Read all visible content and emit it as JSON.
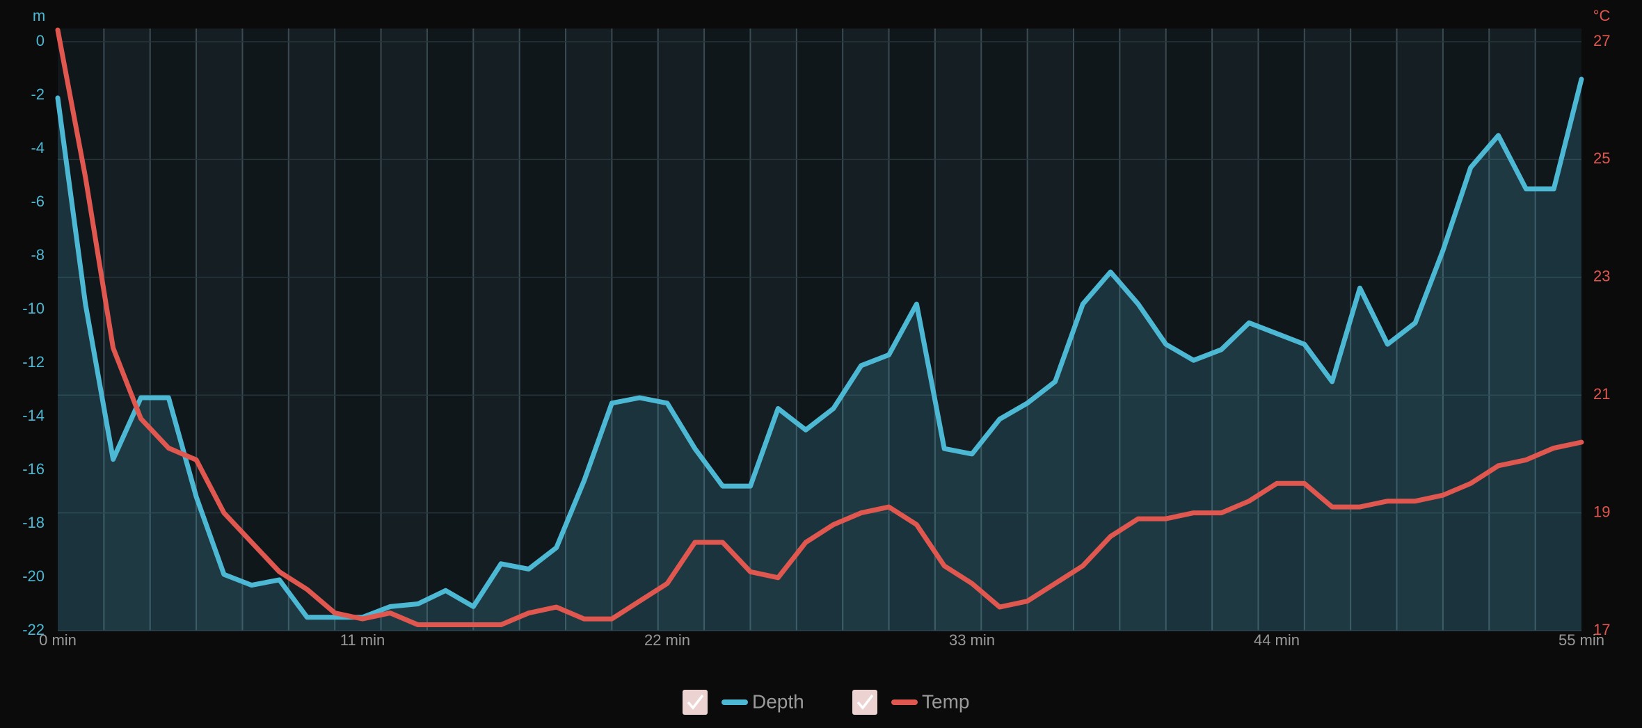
{
  "chart_data": {
    "type": "line",
    "y_label": "m",
    "y2_label": "°C",
    "x": [
      0,
      1,
      2,
      3,
      4,
      5,
      6,
      7,
      8,
      9,
      10,
      11,
      12,
      13,
      14,
      15,
      16,
      17,
      18,
      19,
      20,
      21,
      22,
      23,
      24,
      25,
      26,
      27,
      28,
      29,
      30,
      31,
      32,
      33,
      34,
      35,
      36,
      37,
      38,
      39,
      40,
      41,
      42,
      43,
      44,
      45,
      46,
      47,
      48,
      49,
      50,
      51,
      52,
      53,
      54,
      55
    ],
    "series": [
      {
        "name": "Depth",
        "color": "#4db8d4",
        "values": [
          -2.1,
          -9.8,
          -15.6,
          -13.3,
          -13.3,
          -17,
          -19.9,
          -20.3,
          -20.1,
          -21.5,
          -21.5,
          -21.5,
          -21.1,
          -21,
          -20.5,
          -21.1,
          -19.5,
          -19.7,
          -18.9,
          -16.4,
          -13.5,
          -13.3,
          -13.5,
          -15.2,
          -16.6,
          -16.6,
          -13.7,
          -14.5,
          -13.7,
          -12.1,
          -11.7,
          -9.8,
          -15.2,
          -15.4,
          -14.1,
          -13.5,
          -12.7,
          -9.8,
          -8.6,
          -9.8,
          -11.3,
          -11.9,
          -11.5,
          -10.5,
          -10.9,
          -11.3,
          -12.7,
          -9.2,
          -11.3,
          -10.5,
          -7.8,
          -4.7,
          -3.5,
          -5.5,
          -5.5,
          -1.4
        ]
      },
      {
        "name": "Temp",
        "color": "#e0574f",
        "axis": "y2",
        "values": [
          27.2,
          24.7,
          21.8,
          20.6,
          20.1,
          19.9,
          19,
          18.5,
          18,
          17.7,
          17.3,
          17.2,
          17.3,
          17.1,
          17.1,
          17.1,
          17.1,
          17.3,
          17.4,
          17.2,
          17.2,
          17.5,
          17.8,
          18.5,
          18.5,
          18,
          17.9,
          18.5,
          18.8,
          19,
          19.1,
          18.8,
          18.1,
          17.8,
          17.4,
          17.5,
          17.8,
          18.1,
          18.6,
          18.9,
          18.9,
          19,
          19,
          19.2,
          19.5,
          19.5,
          19.1,
          19.1,
          19.2,
          19.2,
          19.3,
          19.5,
          19.8,
          19.9,
          20.1,
          20.2
        ]
      }
    ],
    "xlim": [
      0,
      55
    ],
    "xticks": [
      {
        "value": 0,
        "label": "0 min"
      },
      {
        "value": 11,
        "label": "11 min"
      },
      {
        "value": 22,
        "label": "22 min"
      },
      {
        "value": 33,
        "label": "33 min"
      },
      {
        "value": 44,
        "label": "44 min"
      },
      {
        "value": 55,
        "label": "55 min"
      }
    ],
    "ylim": [
      -22,
      0
    ],
    "yticks": [
      0,
      -2,
      -4,
      -6,
      -8,
      -10,
      -12,
      -14,
      -16,
      -18,
      -20,
      -22
    ],
    "y2lim": [
      17,
      27
    ],
    "y2ticks": [
      17,
      19,
      21,
      23,
      25,
      27
    ],
    "grid": true
  }
}
